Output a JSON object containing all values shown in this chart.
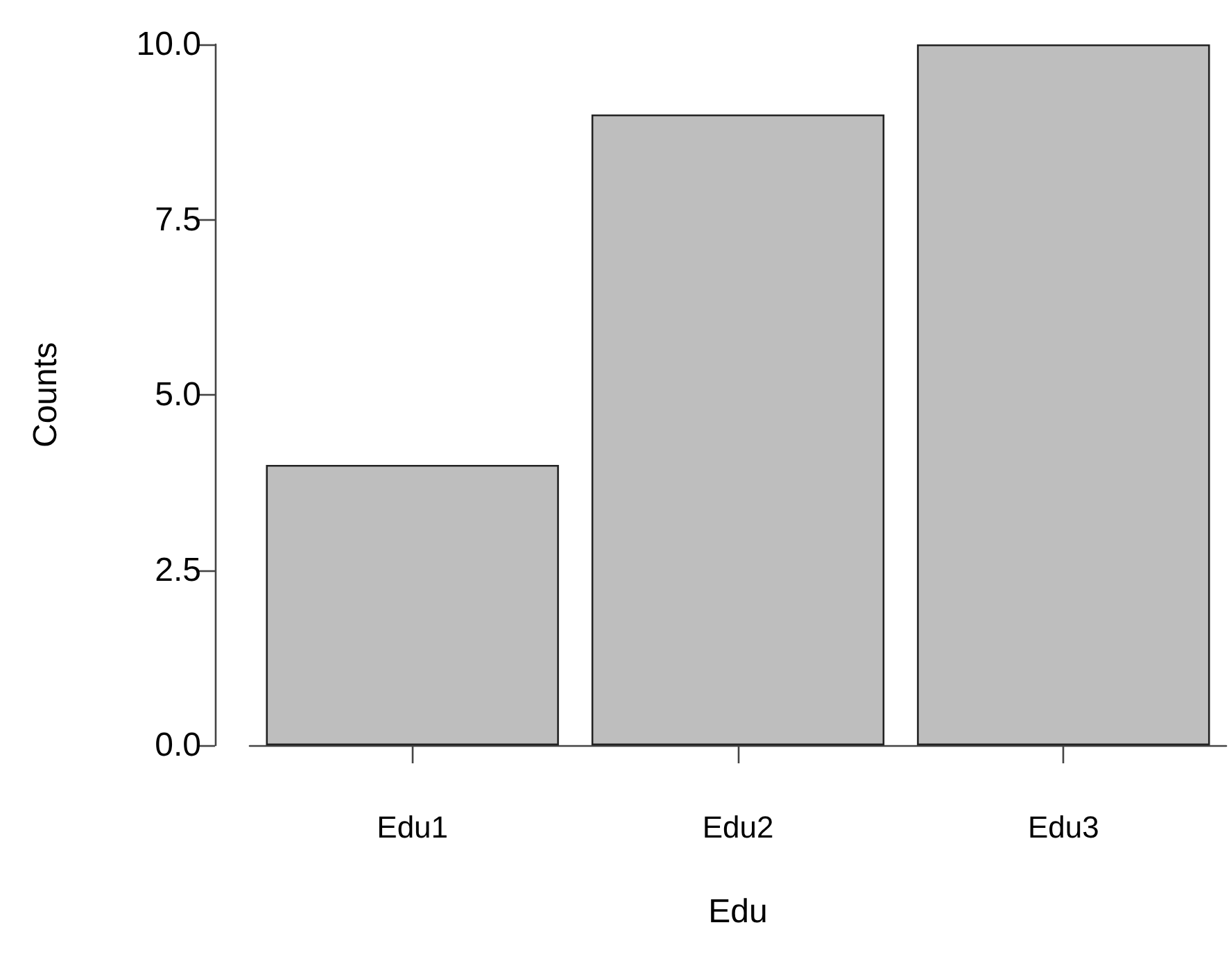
{
  "chart_data": {
    "type": "bar",
    "xlabel": "Edu",
    "ylabel": "Counts",
    "categories": [
      "Edu1",
      "Edu2",
      "Edu3"
    ],
    "values": [
      4,
      9,
      10
    ],
    "color": "#bebebe",
    "ylim": [
      0,
      10
    ],
    "yticks": [
      {
        "value": 0,
        "label": "0.0"
      },
      {
        "value": 2.5,
        "label": "2.5"
      },
      {
        "value": 5,
        "label": "5.0"
      },
      {
        "value": 7.5,
        "label": "7.5"
      },
      {
        "value": 10,
        "label": "10.0"
      }
    ],
    "grid": false
  }
}
